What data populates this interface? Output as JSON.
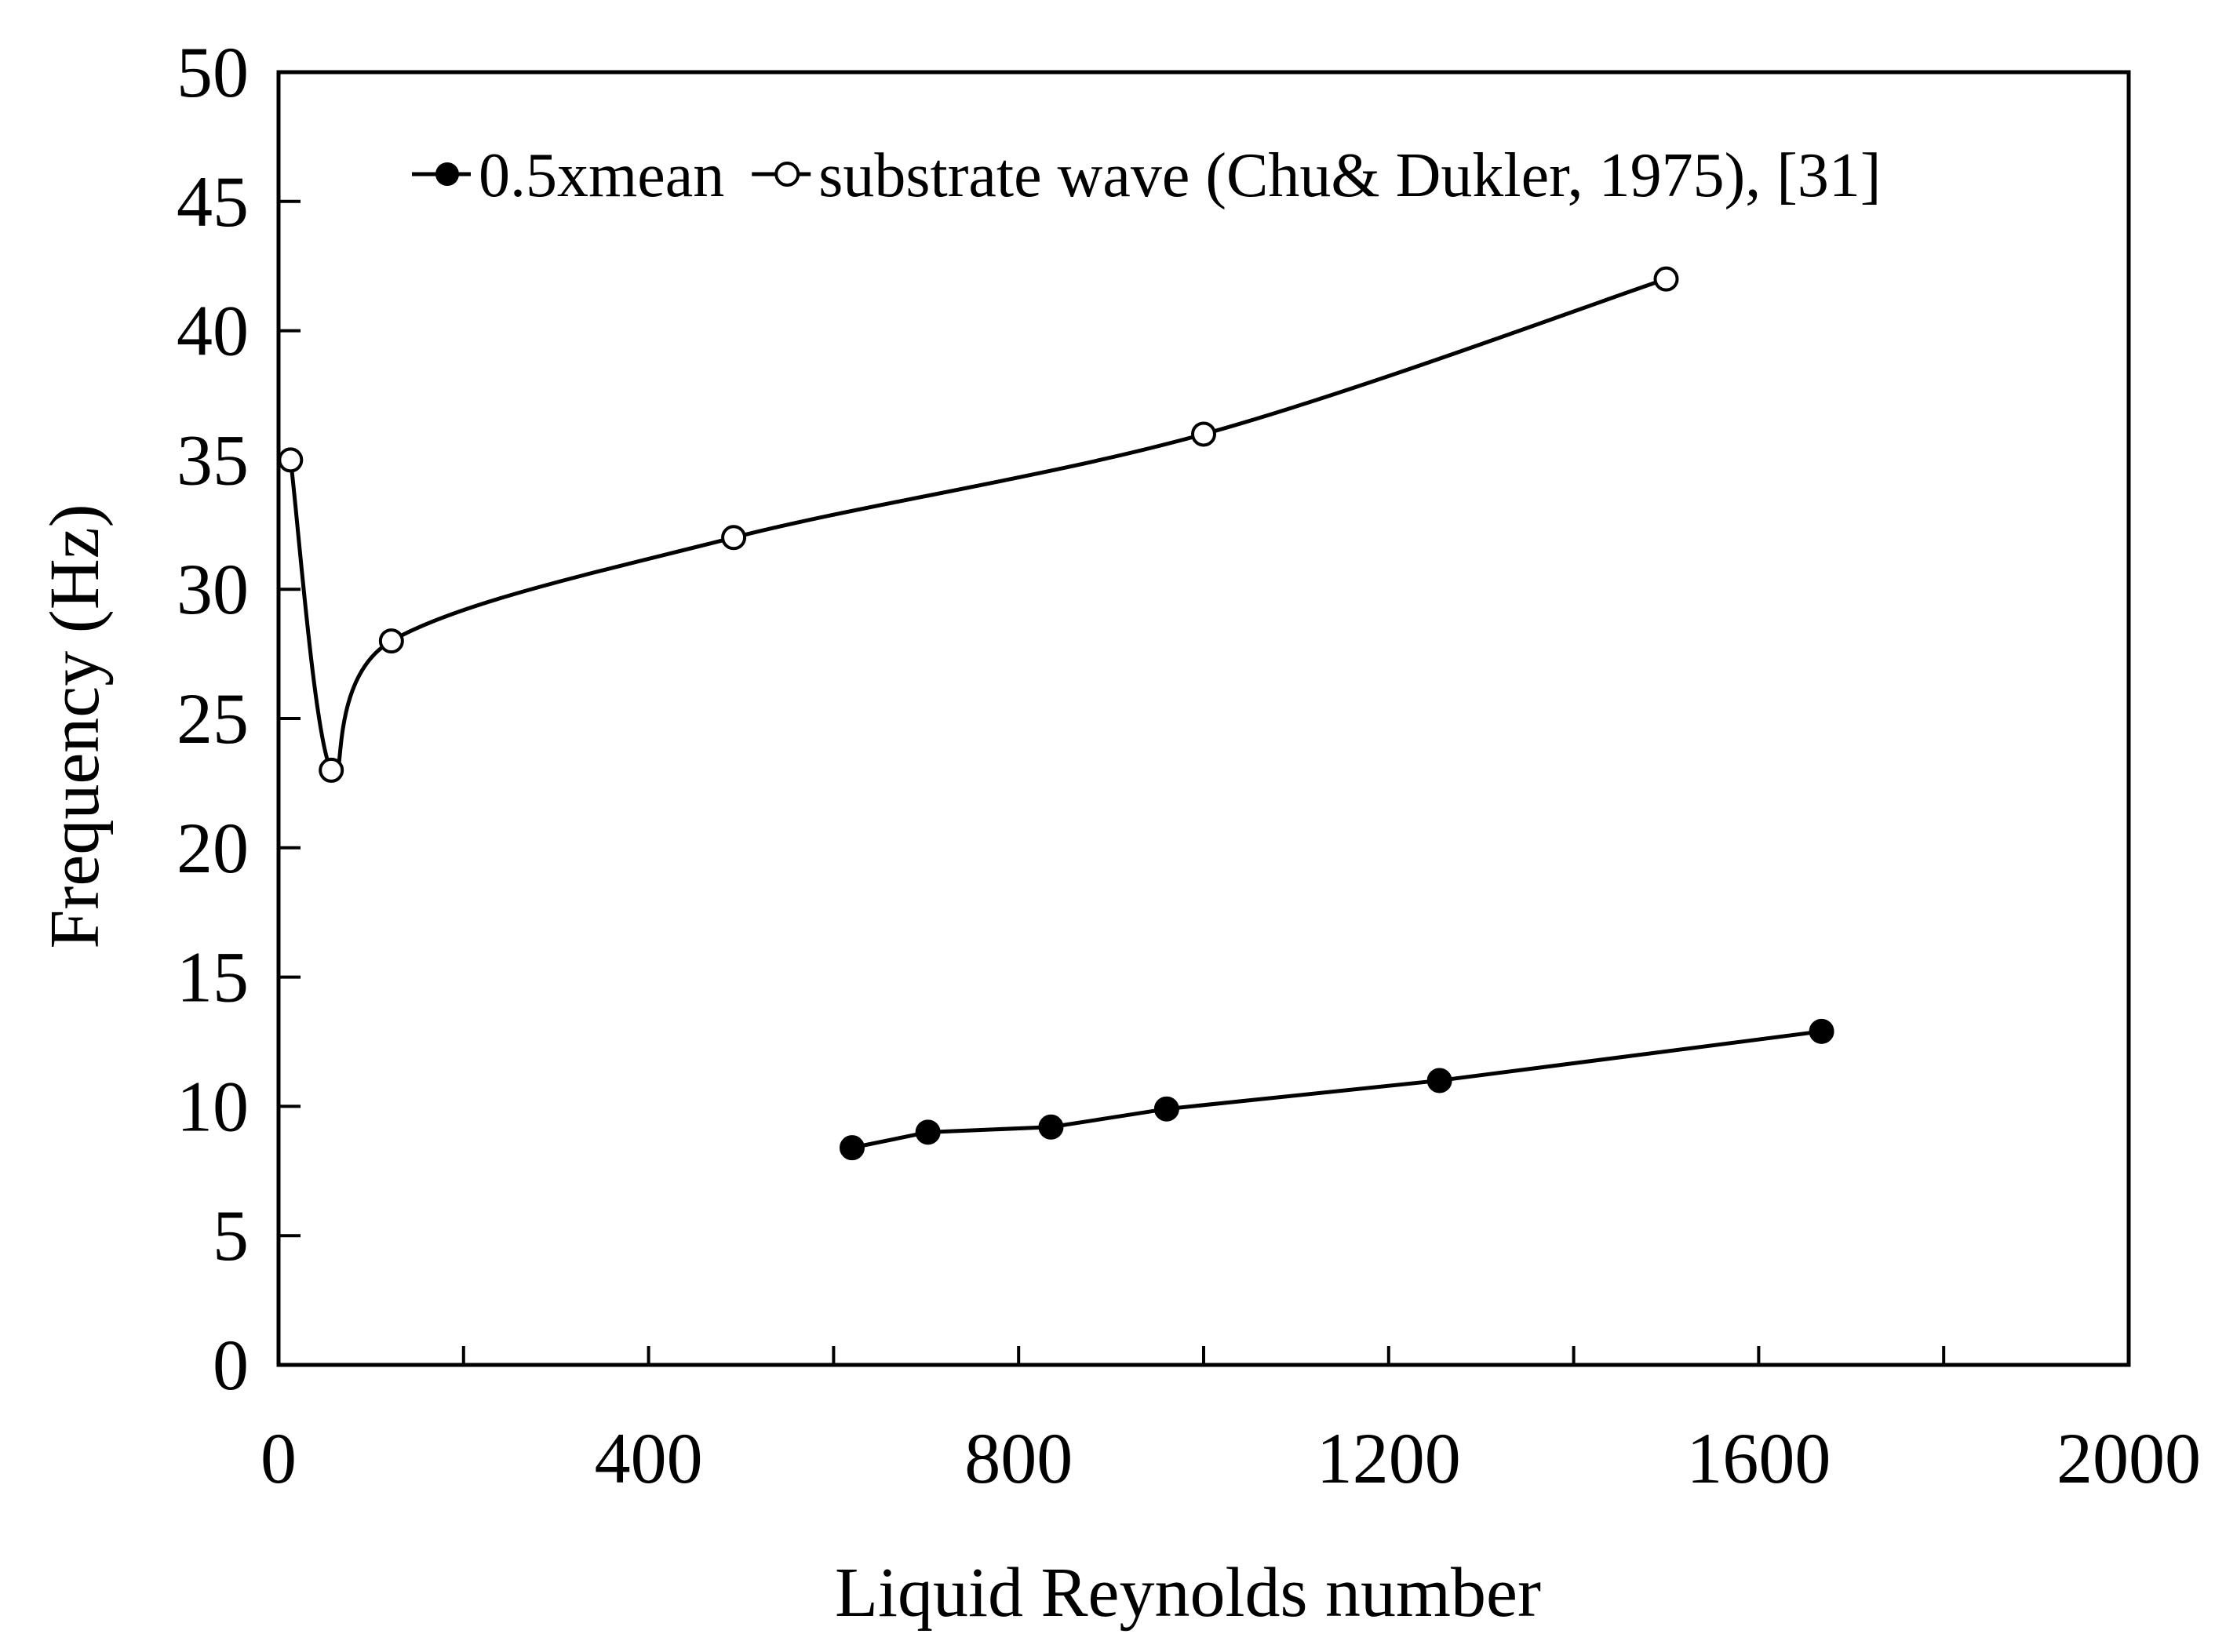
{
  "chart_data": {
    "type": "line",
    "title": "",
    "xlabel": "Liquid Reynolds number",
    "ylabel": "Frequency (Hz)",
    "xlim": [
      0,
      2000
    ],
    "ylim": [
      0,
      50
    ],
    "x_major_ticks": [
      0,
      400,
      800,
      1200,
      1600,
      2000
    ],
    "x_minor_ticks": [
      200,
      600,
      1000,
      1400,
      1800
    ],
    "y_ticks": [
      0,
      5,
      10,
      15,
      20,
      25,
      30,
      35,
      40,
      45,
      50
    ],
    "grid": false,
    "legend_position": "top",
    "series": [
      {
        "name": "0.5xmean",
        "marker": "filled-circle",
        "line": "straight",
        "color": "#000000",
        "x": [
          620,
          702,
          835,
          960,
          1255,
          1668
        ],
        "y": [
          8.4,
          9.0,
          9.2,
          9.9,
          11.0,
          12.9
        ]
      },
      {
        "name": "substrate wave (Chu& Dukler, 1975), [31]",
        "marker": "open-circle",
        "line": "smooth",
        "color": "#000000",
        "x": [
          13,
          57,
          122,
          492,
          1000,
          1500
        ],
        "y": [
          35,
          23,
          28,
          32,
          36,
          42
        ]
      }
    ]
  }
}
